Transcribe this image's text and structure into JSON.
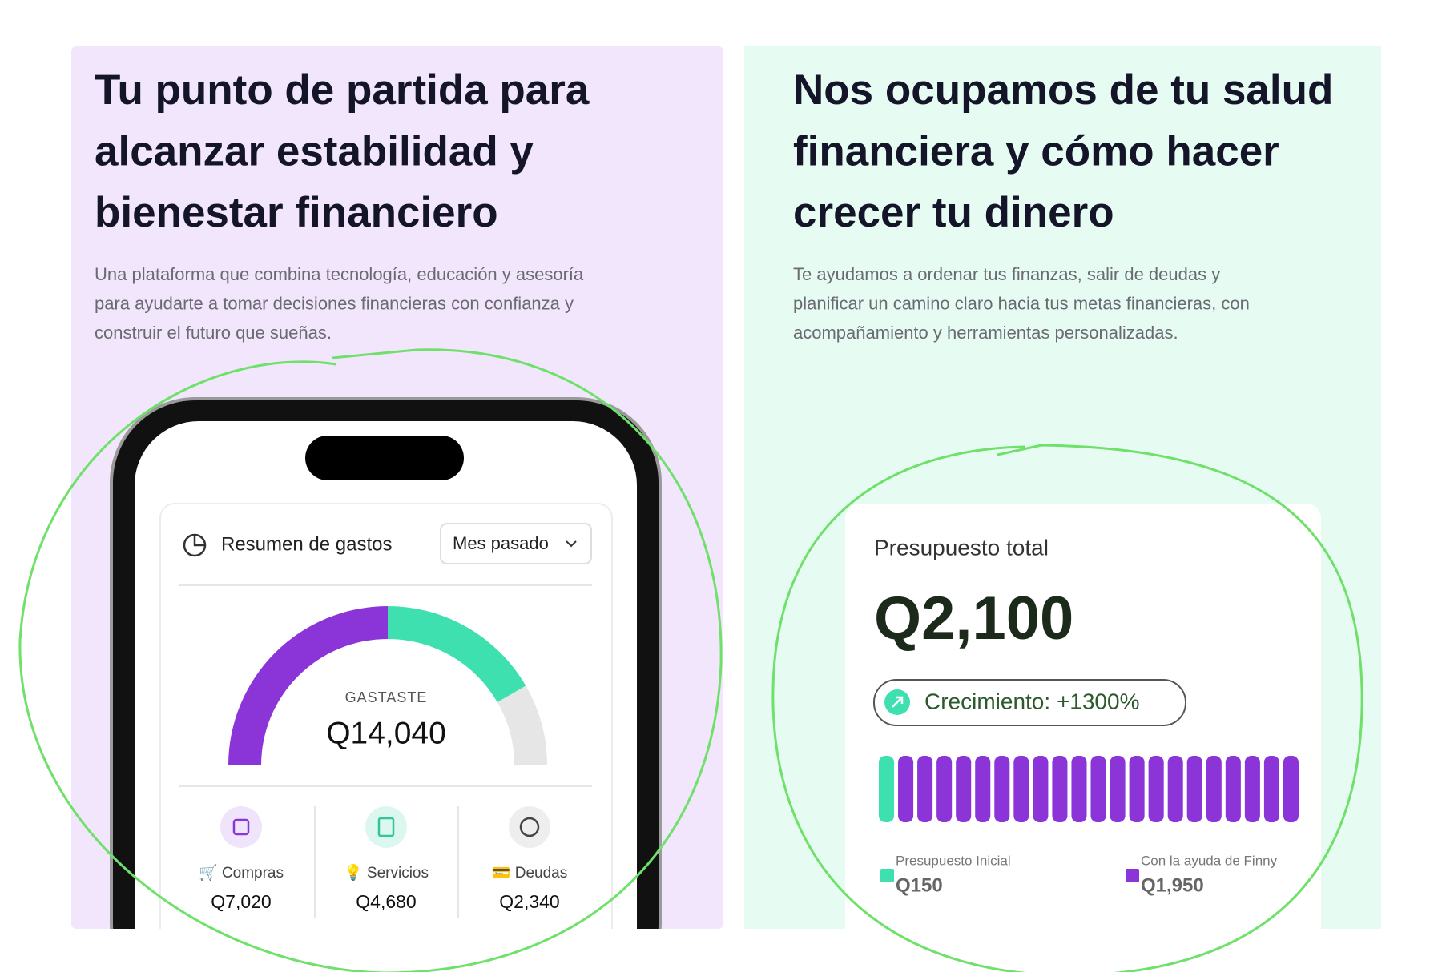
{
  "left": {
    "title_lines": [
      "Tu punto de partida para",
      "alcanzar estabilidad y",
      "bienestar financiero"
    ],
    "paragraph_lines": [
      "Una plataforma que combina tecnología, educación y asesoría",
      "para ayudarte a tomar decisiones financieras con confianza y",
      "construir el futuro que sueñas."
    ],
    "summary": {
      "title": "Resumen de gastos",
      "period": "Mes pasado",
      "total_caption": "GASTASTE",
      "total": 14040,
      "total_label": "Q14,040",
      "items": [
        {
          "label": "🛒 Compras",
          "value": 7020,
          "value_label": "Q7,020",
          "color": "#8b35d8"
        },
        {
          "label": "💡 Servicios",
          "value": 4680,
          "value_label": "Q4,680",
          "color": "#3fe0b0"
        },
        {
          "label": "💳 Deudas",
          "value": 2340,
          "value_label": "Q2,340",
          "color": "#e6e6e6"
        }
      ]
    }
  },
  "right": {
    "title_lines": [
      "Nos ocupamos de tu salud",
      "financiera y cómo hacer",
      "crecer tu dinero"
    ],
    "paragraph_lines": [
      "Te ayudamos a ordenar tus finanzas, salir de deudas y",
      "planificar un camino claro hacia tus metas financieras, con",
      "acompañamiento y herramientas personalizadas."
    ],
    "budget": {
      "title": "Presupuesto total",
      "total_label": "Q2,100",
      "growth": "Crecimiento: +1300%",
      "legend": [
        {
          "label": "Presupuesto Inicial",
          "value_label": "Q150",
          "color": "#3fe0b0"
        },
        {
          "label": "Con la ayuda de Finny",
          "value_label": "Q1,950",
          "color": "#8b35d8"
        }
      ]
    }
  }
}
